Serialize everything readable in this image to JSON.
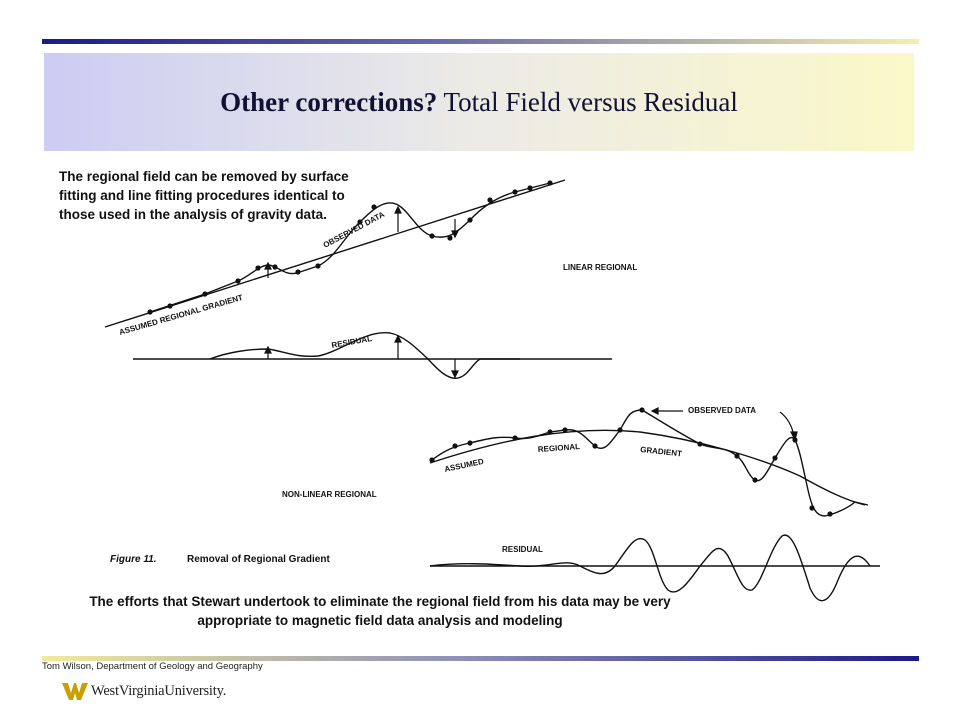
{
  "slide": {
    "title_bold": "Other corrections?",
    "title_rest": " Total Field versus Residual",
    "note_top": "The regional field can be removed by surface fitting and line fitting procedures identical to those used in the analysis of gravity data.",
    "note_bottom": "The efforts that Stewart undertook to eliminate the regional field from  his data may be  very appropriate to magnetic field data analysis and modeling",
    "footer": "Tom Wilson, Department of Geology and Geography",
    "logo_text": "WestVirginiaUniversity."
  },
  "figure": {
    "labels": {
      "observed_data_1": "OBSERVED DATA",
      "linear_regional": "LINEAR REGIONAL",
      "assumed_regional_gradient": "ASSUMED REGIONAL GRADIENT",
      "residual_1": "RESIDUAL",
      "observed_data_2": "OBSERVED DATA",
      "assumed": "ASSUMED",
      "regional": "REGIONAL",
      "gradient": "GRADIENT",
      "non_linear_regional": "NON-LINEAR REGIONAL",
      "residual_2": "RESIDUAL",
      "figure_number": "Figure 11.",
      "figure_caption": "Removal of Regional Gradient"
    }
  },
  "colors": {
    "text": "#111111",
    "accent_dark": "#1a1a8a",
    "accent_light": "#f4f0a8"
  },
  "icons": {
    "logo": "flying-wv-icon"
  }
}
